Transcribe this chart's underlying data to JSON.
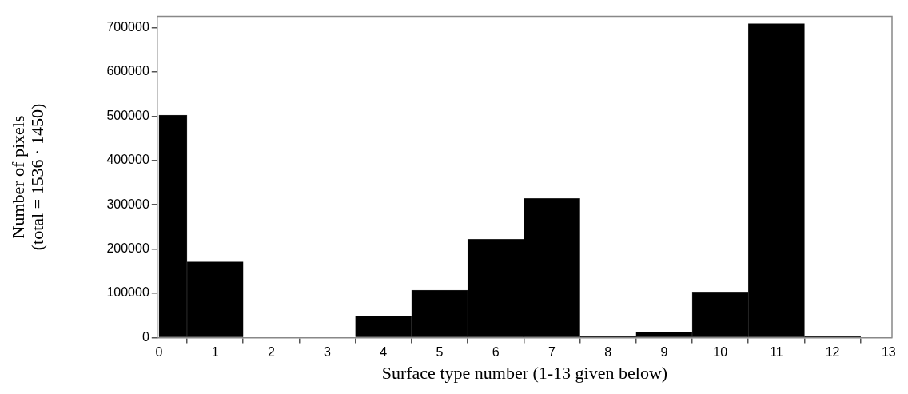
{
  "chart_data": {
    "type": "histogram",
    "xlabel": "Surface type number (1-13 given below)",
    "ylabel": "Number of pixels\n(total = 1536 · 1450)",
    "bins": [
      0,
      0.5,
      1.5,
      2.5,
      3.5,
      4.5,
      5.5,
      6.5,
      7.5,
      8.5,
      9.5,
      10.5,
      11.5,
      12.5
    ],
    "values": [
      502000,
      171000,
      0,
      0,
      49000,
      107000,
      222000,
      314000,
      2000,
      12000,
      103000,
      709000,
      2000
    ],
    "color": "#000000",
    "xlim": [
      -0.03,
      13.06
    ],
    "xticks": [
      0,
      1,
      2,
      3,
      4,
      5,
      6,
      7,
      8,
      9,
      10,
      11,
      12,
      13
    ],
    "ylim": [
      0,
      725000
    ],
    "yticks": [
      0,
      100000,
      200000,
      300000,
      400000,
      500000,
      600000,
      700000
    ],
    "grid": false,
    "legend": false
  }
}
